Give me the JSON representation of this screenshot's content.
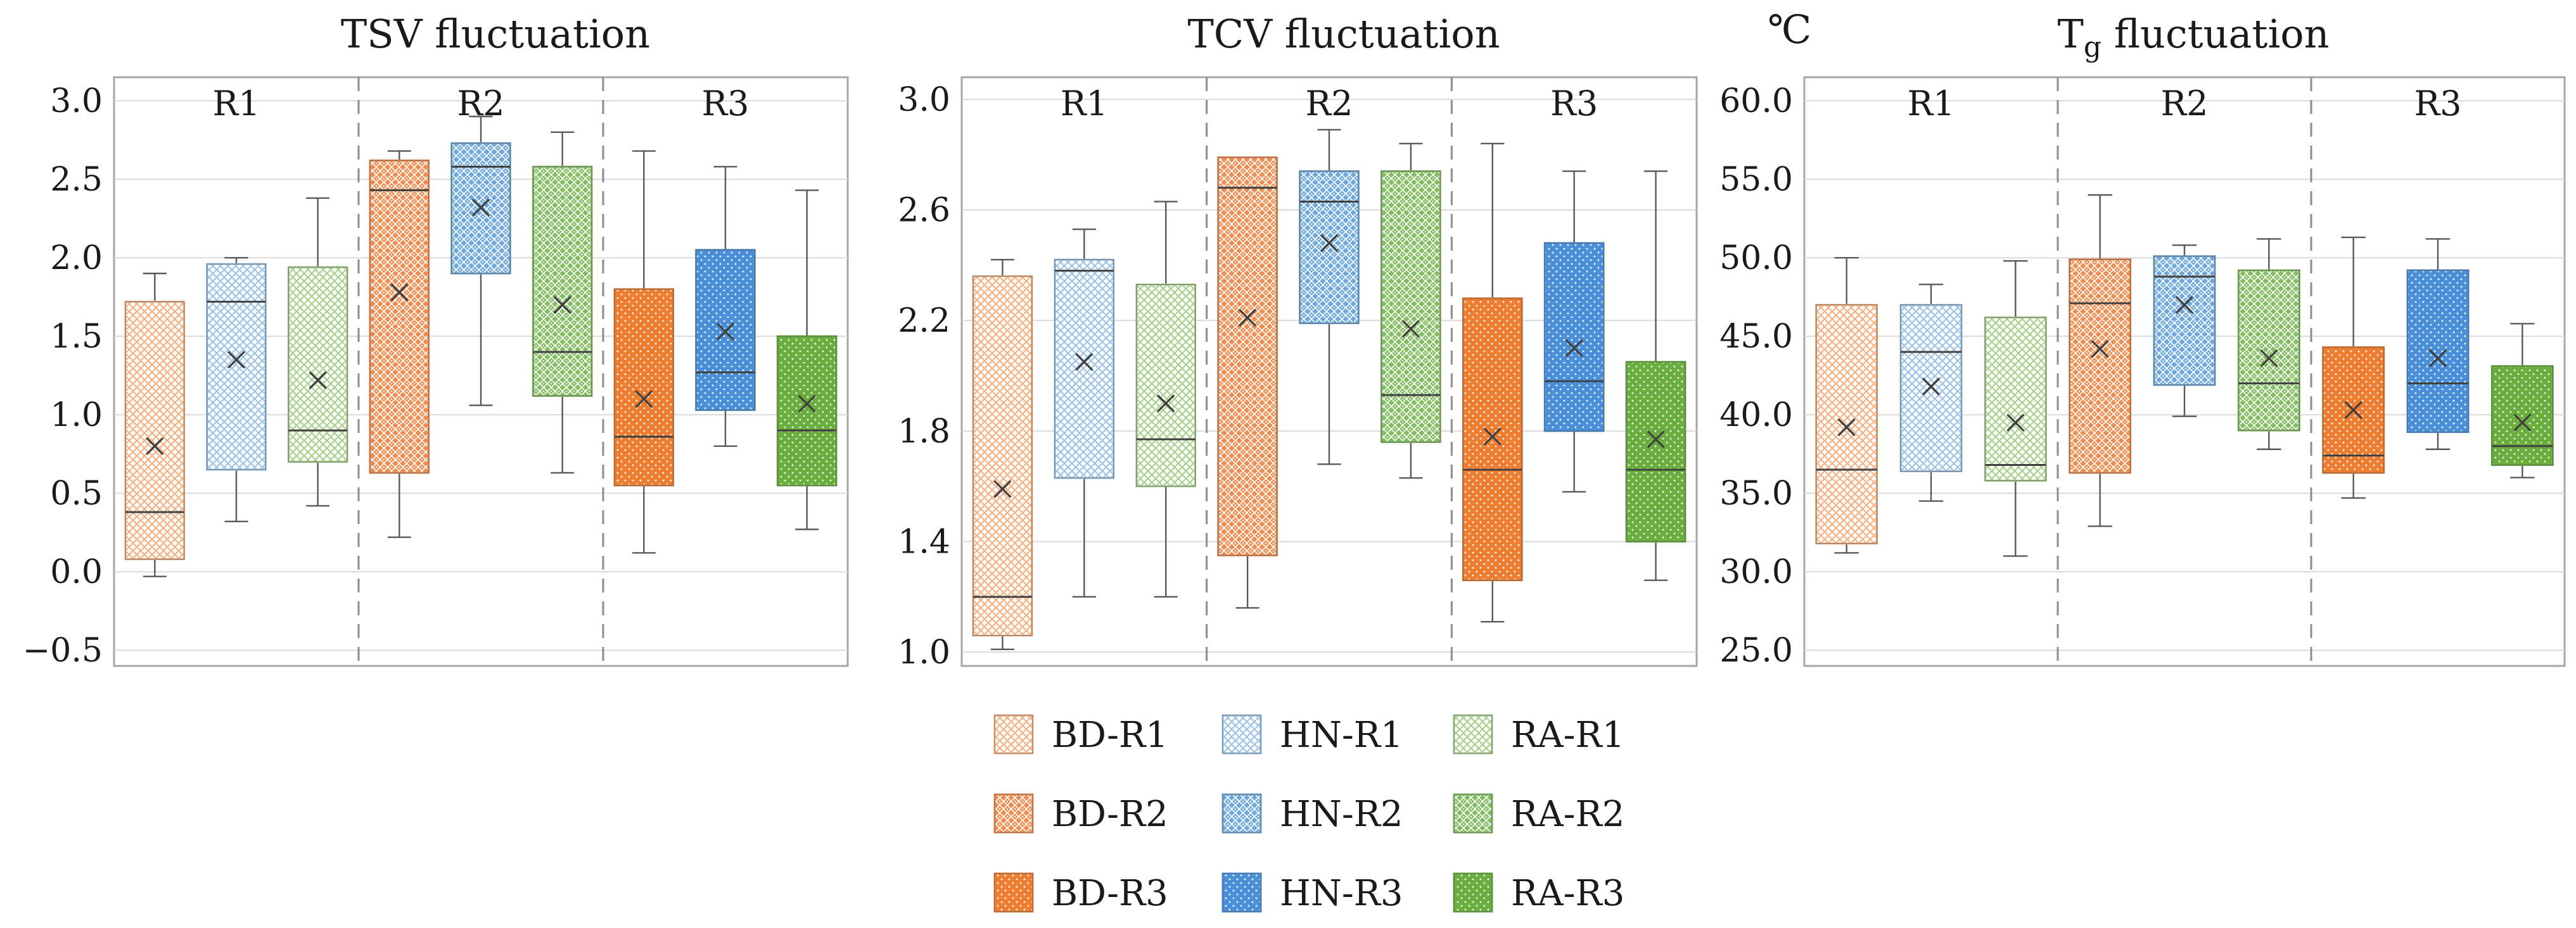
{
  "colors": {
    "BD-R1": "#F4B183",
    "BD-R2": "#F08C4E",
    "BD-R3": "#ED7D31",
    "HN-R1": "#9DC3E6",
    "HN-R2": "#6FA8DC",
    "HN-R3": "#4A90D9",
    "RA-R1": "#A9D18E",
    "RA-R2": "#82BD5F",
    "RA-R3": "#6AAE3E",
    "frame": "#a6a6a6",
    "grid": "#d9d9d9",
    "divider": "#8c8c8c",
    "median": "#404040",
    "whisker": "#595959"
  },
  "legend": {
    "items": [
      "BD-R1",
      "HN-R1",
      "RA-R1",
      "BD-R2",
      "HN-R2",
      "RA-R2",
      "BD-R3",
      "HN-R3",
      "RA-R3"
    ]
  },
  "chart_data": [
    {
      "type": "box",
      "title": "TSV fluctuation",
      "unit_label": "",
      "regions": [
        "R1",
        "R2",
        "R3"
      ],
      "ylim": [
        -0.6,
        3.15
      ],
      "yticks": [
        -0.5,
        0.0,
        0.5,
        1.0,
        1.5,
        2.0,
        2.5,
        3.0
      ],
      "tick_labels": [
        "−0.5",
        "0.0",
        "0.5",
        "1.0",
        "1.5",
        "2.0",
        "2.5",
        "3.0"
      ],
      "series": [
        {
          "name": "BD-R1",
          "min": -0.03,
          "q1": 0.08,
          "median": 0.38,
          "mean": 0.8,
          "q3": 1.72,
          "max": 1.9
        },
        {
          "name": "HN-R1",
          "min": 0.32,
          "q1": 0.65,
          "median": 1.72,
          "mean": 1.35,
          "q3": 1.96,
          "max": 2.0
        },
        {
          "name": "RA-R1",
          "min": 0.42,
          "q1": 0.7,
          "median": 0.9,
          "mean": 1.22,
          "q3": 1.94,
          "max": 2.38
        },
        {
          "name": "BD-R2",
          "min": 0.22,
          "q1": 0.63,
          "median": 2.43,
          "mean": 1.78,
          "q3": 2.62,
          "max": 2.68
        },
        {
          "name": "HN-R2",
          "min": 1.06,
          "q1": 1.9,
          "median": 2.58,
          "mean": 2.32,
          "q3": 2.73,
          "max": 2.9
        },
        {
          "name": "RA-R2",
          "min": 0.63,
          "q1": 1.12,
          "median": 1.4,
          "mean": 1.7,
          "q3": 2.58,
          "max": 2.8
        },
        {
          "name": "BD-R3",
          "min": 0.12,
          "q1": 0.55,
          "median": 0.86,
          "mean": 1.1,
          "q3": 1.8,
          "max": 2.68
        },
        {
          "name": "HN-R3",
          "min": 0.8,
          "q1": 1.03,
          "median": 1.27,
          "mean": 1.53,
          "q3": 2.05,
          "max": 2.58
        },
        {
          "name": "RA-R3",
          "min": 0.27,
          "q1": 0.55,
          "median": 0.9,
          "mean": 1.07,
          "q3": 1.5,
          "max": 2.43
        }
      ]
    },
    {
      "type": "box",
      "title": "TCV fluctuation",
      "unit_label": "",
      "regions": [
        "R1",
        "R2",
        "R3"
      ],
      "ylim": [
        0.95,
        3.08
      ],
      "yticks": [
        1.0,
        1.4,
        1.8,
        2.2,
        2.6,
        3.0
      ],
      "tick_labels": [
        "1.0",
        "1.4",
        "1.8",
        "2.2",
        "2.6",
        "3.0"
      ],
      "series": [
        {
          "name": "BD-R1",
          "min": 1.01,
          "q1": 1.06,
          "median": 1.2,
          "mean": 1.59,
          "q3": 2.36,
          "max": 2.42
        },
        {
          "name": "HN-R1",
          "min": 1.2,
          "q1": 1.63,
          "median": 2.38,
          "mean": 2.05,
          "q3": 2.42,
          "max": 2.53
        },
        {
          "name": "RA-R1",
          "min": 1.2,
          "q1": 1.6,
          "median": 1.77,
          "mean": 1.9,
          "q3": 2.33,
          "max": 2.63
        },
        {
          "name": "BD-R2",
          "min": 1.16,
          "q1": 1.35,
          "median": 2.68,
          "mean": 2.21,
          "q3": 2.79,
          "max": 2.79
        },
        {
          "name": "HN-R2",
          "min": 1.68,
          "q1": 2.19,
          "median": 2.63,
          "mean": 2.48,
          "q3": 2.74,
          "max": 2.89
        },
        {
          "name": "RA-R2",
          "min": 1.63,
          "q1": 1.76,
          "median": 1.93,
          "mean": 2.17,
          "q3": 2.74,
          "max": 2.84
        },
        {
          "name": "BD-R3",
          "min": 1.11,
          "q1": 1.26,
          "median": 1.66,
          "mean": 1.78,
          "q3": 2.28,
          "max": 2.84
        },
        {
          "name": "HN-R3",
          "min": 1.58,
          "q1": 1.8,
          "median": 1.98,
          "mean": 2.1,
          "q3": 2.48,
          "max": 2.74
        },
        {
          "name": "RA-R3",
          "min": 1.26,
          "q1": 1.4,
          "median": 1.66,
          "mean": 1.77,
          "q3": 2.05,
          "max": 2.74
        }
      ]
    },
    {
      "type": "box",
      "title_main": "T",
      "title_sub": "g",
      "title_rest": " fluctuation",
      "unit_label": "℃",
      "regions": [
        "R1",
        "R2",
        "R3"
      ],
      "ylim": [
        24.0,
        61.5
      ],
      "yticks": [
        25.0,
        30.0,
        35.0,
        40.0,
        45.0,
        50.0,
        55.0,
        60.0
      ],
      "tick_labels": [
        "25.0",
        "30.0",
        "35.0",
        "40.0",
        "45.0",
        "50.0",
        "55.0",
        "60.0"
      ],
      "series": [
        {
          "name": "BD-R1",
          "min": 31.2,
          "q1": 31.8,
          "median": 36.5,
          "mean": 39.2,
          "q3": 47.0,
          "max": 50.0
        },
        {
          "name": "HN-R1",
          "min": 34.5,
          "q1": 36.4,
          "median": 44.0,
          "mean": 41.8,
          "q3": 47.0,
          "max": 48.3
        },
        {
          "name": "RA-R1",
          "min": 31.0,
          "q1": 35.8,
          "median": 36.8,
          "mean": 39.5,
          "q3": 46.2,
          "max": 49.8
        },
        {
          "name": "BD-R2",
          "min": 32.9,
          "q1": 36.3,
          "median": 47.1,
          "mean": 44.2,
          "q3": 49.9,
          "max": 54.0
        },
        {
          "name": "HN-R2",
          "min": 39.9,
          "q1": 41.9,
          "median": 48.8,
          "mean": 47.0,
          "q3": 50.1,
          "max": 50.8
        },
        {
          "name": "RA-R2",
          "min": 37.8,
          "q1": 39.0,
          "median": 42.0,
          "mean": 43.6,
          "q3": 49.2,
          "max": 51.2
        },
        {
          "name": "BD-R3",
          "min": 34.7,
          "q1": 36.3,
          "median": 37.4,
          "mean": 40.3,
          "q3": 44.3,
          "max": 51.3
        },
        {
          "name": "HN-R3",
          "min": 37.8,
          "q1": 38.9,
          "median": 42.0,
          "mean": 43.6,
          "q3": 49.2,
          "max": 51.2
        },
        {
          "name": "RA-R3",
          "min": 36.0,
          "q1": 36.8,
          "median": 38.0,
          "mean": 39.5,
          "q3": 43.1,
          "max": 45.8
        }
      ]
    }
  ]
}
